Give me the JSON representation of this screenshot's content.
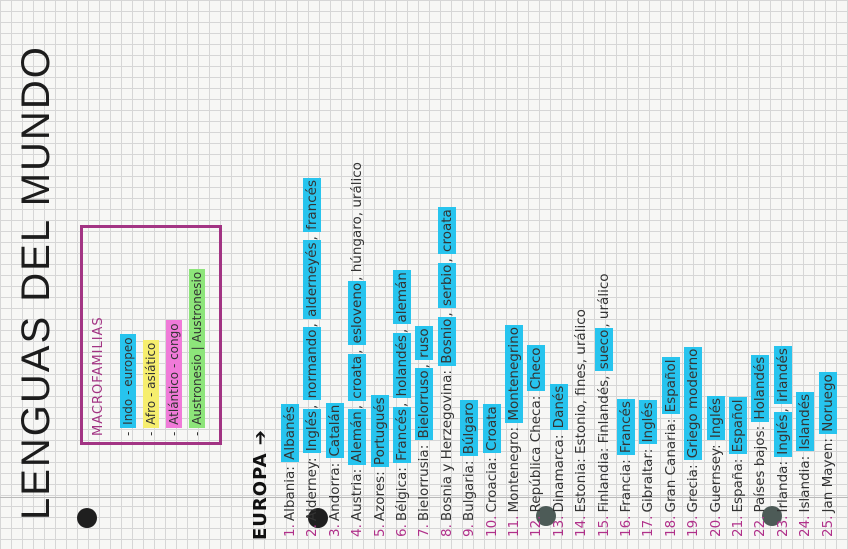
{
  "title": "LENGUAS DEL MUNDO",
  "macrofamilias": {
    "heading": "MACROFAMILIAS",
    "items": [
      {
        "label": "Indo - europeo",
        "color": "#27c4ee"
      },
      {
        "label": "Afro - asiático",
        "color": "#f6ee6e"
      },
      {
        "label": "Atlántico - congo",
        "color": "#f07ad8"
      },
      {
        "label": "Austronesio | Austronesio",
        "color": "#8de57a"
      }
    ]
  },
  "section": "EUROPA ➔",
  "highlight_color": "#27c4ee",
  "items": [
    {
      "num": "1.",
      "country": "Albania:",
      "langs": [
        {
          "t": "Albanés",
          "h": true
        }
      ]
    },
    {
      "num": "2.",
      "country": "Alderney:",
      "langs": [
        {
          "t": "Inglés",
          "h": true
        },
        {
          "t": "normando",
          "h": true
        },
        {
          "t": "alderneyés",
          "h": true
        },
        {
          "t": "francés",
          "h": true
        }
      ]
    },
    {
      "num": "3.",
      "country": "Andorra:",
      "langs": [
        {
          "t": "Catalán",
          "h": true
        }
      ]
    },
    {
      "num": "4.",
      "country": "Austria:",
      "langs": [
        {
          "t": "Alemán",
          "h": true
        },
        {
          "t": "croata",
          "h": true
        },
        {
          "t": "esloveno",
          "h": true
        },
        {
          "t": "húngaro",
          "h": false
        },
        {
          "t": "urálico",
          "h": false
        }
      ]
    },
    {
      "num": "5.",
      "country": "Azores:",
      "langs": [
        {
          "t": "Portugués",
          "h": true
        }
      ]
    },
    {
      "num": "6.",
      "country": "Bélgica:",
      "langs": [
        {
          "t": "Francés",
          "h": true
        },
        {
          "t": "holandés",
          "h": true
        },
        {
          "t": "alemán",
          "h": true
        }
      ]
    },
    {
      "num": "7.",
      "country": "Bielorrusia:",
      "langs": [
        {
          "t": "Bielorruso",
          "h": true
        },
        {
          "t": "ruso",
          "h": true
        }
      ]
    },
    {
      "num": "8.",
      "country": "Bosnia y Herzegovina:",
      "langs": [
        {
          "t": "Bosnio",
          "h": true
        },
        {
          "t": "serbio",
          "h": true
        },
        {
          "t": "croata",
          "h": true
        }
      ]
    },
    {
      "num": "9.",
      "country": "Bulgaria:",
      "langs": [
        {
          "t": "Búlgaro",
          "h": true
        }
      ]
    },
    {
      "num": "10.",
      "country": "Croacia:",
      "langs": [
        {
          "t": "Croata",
          "h": true
        }
      ]
    },
    {
      "num": "11.",
      "country": "Montenegro:",
      "langs": [
        {
          "t": "Montenegrino",
          "h": true
        }
      ]
    },
    {
      "num": "12.",
      "country": "República Checa:",
      "langs": [
        {
          "t": "Checo",
          "h": true
        }
      ]
    },
    {
      "num": "13.",
      "country": "Dinamarca:",
      "langs": [
        {
          "t": "Danés",
          "h": true
        }
      ]
    },
    {
      "num": "14.",
      "country": "Estonia:",
      "langs": [
        {
          "t": "Estonio",
          "h": false
        },
        {
          "t": "fines",
          "h": false
        },
        {
          "t": "urálico",
          "h": false
        }
      ]
    },
    {
      "num": "15.",
      "country": "Finlandia:",
      "langs": [
        {
          "t": "Finlandés",
          "h": false
        },
        {
          "t": "sueco",
          "h": true
        },
        {
          "t": "urálico",
          "h": false
        }
      ]
    },
    {
      "num": "16.",
      "country": "Francia:",
      "langs": [
        {
          "t": "Francés",
          "h": true
        }
      ]
    },
    {
      "num": "17.",
      "country": "Gibraltar:",
      "langs": [
        {
          "t": "Inglés",
          "h": true
        }
      ]
    },
    {
      "num": "18.",
      "country": "Gran Canaria:",
      "langs": [
        {
          "t": "Español",
          "h": true
        }
      ]
    },
    {
      "num": "19.",
      "country": "Grecia:",
      "langs": [
        {
          "t": "Griego moderno",
          "h": true
        }
      ]
    },
    {
      "num": "20.",
      "country": "Guernsey:",
      "langs": [
        {
          "t": "Inglés",
          "h": true
        }
      ]
    },
    {
      "num": "21.",
      "country": "España:",
      "langs": [
        {
          "t": "Español",
          "h": true
        }
      ]
    },
    {
      "num": "22.",
      "country": "Países bajos:",
      "langs": [
        {
          "t": "Holandés",
          "h": true
        }
      ]
    },
    {
      "num": "23.",
      "country": "Irlanda:",
      "langs": [
        {
          "t": "Inglés",
          "h": true
        },
        {
          "t": "irlandés",
          "h": true
        }
      ]
    },
    {
      "num": "24.",
      "country": "Islandia:",
      "langs": [
        {
          "t": "Islandés",
          "h": true
        }
      ]
    },
    {
      "num": "25.",
      "country": "Jan Mayen:",
      "langs": [
        {
          "t": "Noruego",
          "h": true
        }
      ]
    }
  ]
}
